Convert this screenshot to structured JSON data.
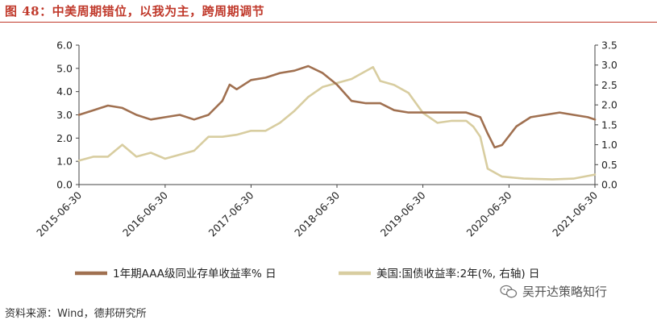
{
  "header": {
    "title": "图 48：中美周期错位，以我为主，跨周期调节"
  },
  "source": "资料来源：Wind，德邦研究所",
  "watermark": {
    "text": "吴开达策略知行",
    "icon": "wechat-icon"
  },
  "chart_data": {
    "type": "line",
    "title": "",
    "x_ticks": [
      "2015-06-30",
      "2016-06-30",
      "2017-06-30",
      "2018-06-30",
      "2019-06-30",
      "2020-06-30",
      "2021-06-30"
    ],
    "xlim": [
      "2015-06-30",
      "2021-06-30"
    ],
    "y_left": {
      "ticks": [
        "0.0",
        "1.0",
        "2.0",
        "3.0",
        "4.0",
        "5.0",
        "6.0"
      ],
      "lim": [
        0,
        6
      ]
    },
    "y_right": {
      "ticks": [
        "0.0",
        "0.5",
        "1.0",
        "1.5",
        "2.0",
        "2.5",
        "3.0",
        "3.5"
      ],
      "lim": [
        0,
        3.5
      ]
    },
    "legend_position": "bottom",
    "series": [
      {
        "name": "1年期AAA级同业存单收益率% 日",
        "axis": "left",
        "color": "#a07050",
        "points": [
          [
            "2015-06-30",
            3.0
          ],
          [
            "2015-08-31",
            3.2
          ],
          [
            "2015-10-31",
            3.4
          ],
          [
            "2015-12-31",
            3.3
          ],
          [
            "2016-02-29",
            3.0
          ],
          [
            "2016-04-30",
            2.8
          ],
          [
            "2016-06-30",
            2.9
          ],
          [
            "2016-08-31",
            3.0
          ],
          [
            "2016-10-31",
            2.8
          ],
          [
            "2016-12-31",
            3.0
          ],
          [
            "2017-02-28",
            3.6
          ],
          [
            "2017-03-31",
            4.3
          ],
          [
            "2017-04-30",
            4.1
          ],
          [
            "2017-06-30",
            4.5
          ],
          [
            "2017-08-31",
            4.6
          ],
          [
            "2017-10-31",
            4.8
          ],
          [
            "2017-12-31",
            4.9
          ],
          [
            "2018-02-28",
            5.1
          ],
          [
            "2018-04-30",
            4.8
          ],
          [
            "2018-06-30",
            4.3
          ],
          [
            "2018-08-31",
            3.6
          ],
          [
            "2018-10-31",
            3.5
          ],
          [
            "2018-12-31",
            3.5
          ],
          [
            "2019-02-28",
            3.2
          ],
          [
            "2019-04-30",
            3.1
          ],
          [
            "2019-06-30",
            3.1
          ],
          [
            "2019-08-31",
            3.1
          ],
          [
            "2019-10-31",
            3.1
          ],
          [
            "2019-12-31",
            3.1
          ],
          [
            "2020-02-29",
            2.9
          ],
          [
            "2020-03-31",
            2.2
          ],
          [
            "2020-04-30",
            1.6
          ],
          [
            "2020-05-31",
            1.7
          ],
          [
            "2020-07-31",
            2.5
          ],
          [
            "2020-09-30",
            2.9
          ],
          [
            "2020-11-30",
            3.0
          ],
          [
            "2021-01-31",
            3.1
          ],
          [
            "2021-03-31",
            3.0
          ],
          [
            "2021-05-31",
            2.9
          ],
          [
            "2021-06-30",
            2.8
          ]
        ]
      },
      {
        "name": "美国:国债收益率:2年(%, 右轴) 日",
        "axis": "right",
        "color": "#d8cda0",
        "points": [
          [
            "2015-06-30",
            0.6
          ],
          [
            "2015-08-31",
            0.7
          ],
          [
            "2015-10-31",
            0.7
          ],
          [
            "2015-12-31",
            1.0
          ],
          [
            "2016-02-29",
            0.7
          ],
          [
            "2016-04-30",
            0.8
          ],
          [
            "2016-06-30",
            0.65
          ],
          [
            "2016-08-31",
            0.75
          ],
          [
            "2016-10-31",
            0.85
          ],
          [
            "2016-12-31",
            1.2
          ],
          [
            "2017-02-28",
            1.2
          ],
          [
            "2017-04-30",
            1.25
          ],
          [
            "2017-06-30",
            1.35
          ],
          [
            "2017-08-31",
            1.35
          ],
          [
            "2017-10-31",
            1.55
          ],
          [
            "2017-12-31",
            1.85
          ],
          [
            "2018-02-28",
            2.2
          ],
          [
            "2018-04-30",
            2.45
          ],
          [
            "2018-06-30",
            2.55
          ],
          [
            "2018-08-31",
            2.65
          ],
          [
            "2018-10-31",
            2.85
          ],
          [
            "2018-11-30",
            2.95
          ],
          [
            "2018-12-31",
            2.6
          ],
          [
            "2019-02-28",
            2.5
          ],
          [
            "2019-04-30",
            2.3
          ],
          [
            "2019-06-30",
            1.8
          ],
          [
            "2019-08-31",
            1.55
          ],
          [
            "2019-10-31",
            1.6
          ],
          [
            "2019-12-31",
            1.6
          ],
          [
            "2020-01-31",
            1.45
          ],
          [
            "2020-02-29",
            1.2
          ],
          [
            "2020-03-31",
            0.4
          ],
          [
            "2020-05-31",
            0.2
          ],
          [
            "2020-08-31",
            0.15
          ],
          [
            "2020-12-31",
            0.13
          ],
          [
            "2021-03-31",
            0.15
          ],
          [
            "2021-06-30",
            0.25
          ]
        ]
      }
    ]
  }
}
